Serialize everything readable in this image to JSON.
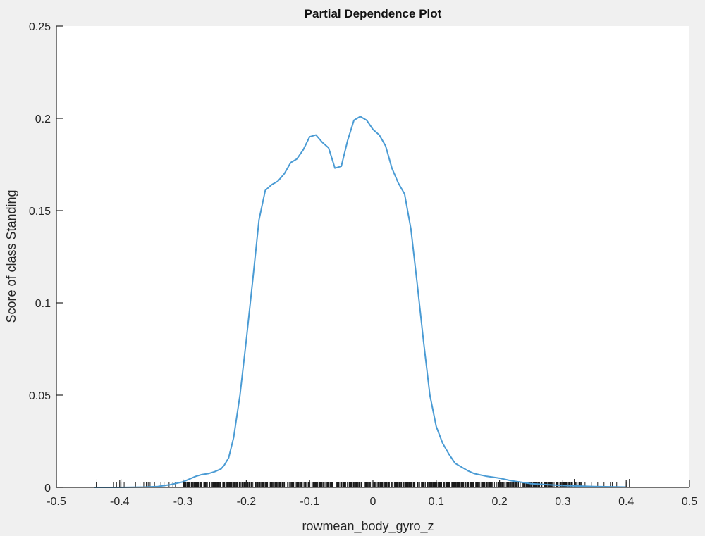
{
  "chart_data": {
    "type": "line",
    "title": "Partial Dependence Plot",
    "xlabel": "rowmean_body_gyro_z",
    "ylabel": "Score of class Standing",
    "xlim": [
      -0.5,
      0.5
    ],
    "ylim": [
      0,
      0.25
    ],
    "x_ticks": [
      -0.5,
      -0.4,
      -0.3,
      -0.2,
      -0.1,
      0,
      0.1,
      0.2,
      0.3,
      0.4,
      0.5
    ],
    "x_tick_labels": [
      "-0.5",
      "-0.4",
      "-0.3",
      "-0.2",
      "-0.1",
      "0",
      "0.1",
      "0.2",
      "0.3",
      "0.4",
      "0.5"
    ],
    "y_ticks": [
      0,
      0.05,
      0.1,
      0.15,
      0.2,
      0.25
    ],
    "y_tick_labels": [
      "0",
      "0.05",
      "0.1",
      "0.15",
      "0.2",
      "0.25"
    ],
    "grid": false,
    "legend": null,
    "line_color": "#4a9bd4",
    "rug": "black tick marks along x-axis showing data distribution, from about -0.44 to 0.40, densest between -0.3 and 0.25",
    "series": [
      {
        "name": "Score of class Standing",
        "x": [
          -0.44,
          -0.4,
          -0.36,
          -0.34,
          -0.32,
          -0.3,
          -0.29,
          -0.28,
          -0.27,
          -0.26,
          -0.25,
          -0.24,
          -0.235,
          -0.228,
          -0.22,
          -0.21,
          -0.2,
          -0.19,
          -0.18,
          -0.17,
          -0.16,
          -0.15,
          -0.14,
          -0.13,
          -0.12,
          -0.11,
          -0.1,
          -0.09,
          -0.08,
          -0.07,
          -0.06,
          -0.05,
          -0.04,
          -0.03,
          -0.02,
          -0.01,
          0.0,
          0.01,
          0.02,
          0.03,
          0.04,
          0.05,
          0.06,
          0.07,
          0.08,
          0.09,
          0.1,
          0.11,
          0.12,
          0.13,
          0.14,
          0.15,
          0.16,
          0.18,
          0.2,
          0.22,
          0.25,
          0.3,
          0.35,
          0.4
        ],
        "y": [
          0.0,
          0.0,
          0.0002,
          0.0005,
          0.0015,
          0.003,
          0.0045,
          0.006,
          0.007,
          0.0075,
          0.0085,
          0.01,
          0.012,
          0.016,
          0.027,
          0.05,
          0.08,
          0.112,
          0.145,
          0.161,
          0.164,
          0.166,
          0.17,
          0.176,
          0.178,
          0.183,
          0.19,
          0.191,
          0.187,
          0.184,
          0.173,
          0.174,
          0.188,
          0.199,
          0.201,
          0.199,
          0.194,
          0.191,
          0.185,
          0.173,
          0.165,
          0.159,
          0.14,
          0.11,
          0.079,
          0.05,
          0.033,
          0.024,
          0.018,
          0.013,
          0.011,
          0.009,
          0.0075,
          0.006,
          0.005,
          0.0035,
          0.002,
          0.001,
          0.0005,
          0.0002
        ]
      }
    ]
  }
}
